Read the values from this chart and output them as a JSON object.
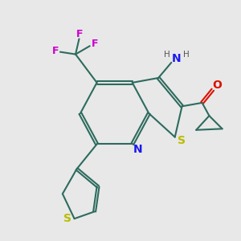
{
  "background_color": "#e8e8e8",
  "line_color": "#2d6b5e",
  "line_width": 1.5,
  "atom_colors": {
    "S": "#bbbb00",
    "N": "#1a1aee",
    "O": "#dd1100",
    "F": "#cc00cc",
    "H_color": "#555555"
  },
  "figsize": [
    3.0,
    3.0
  ],
  "dpi": 100
}
